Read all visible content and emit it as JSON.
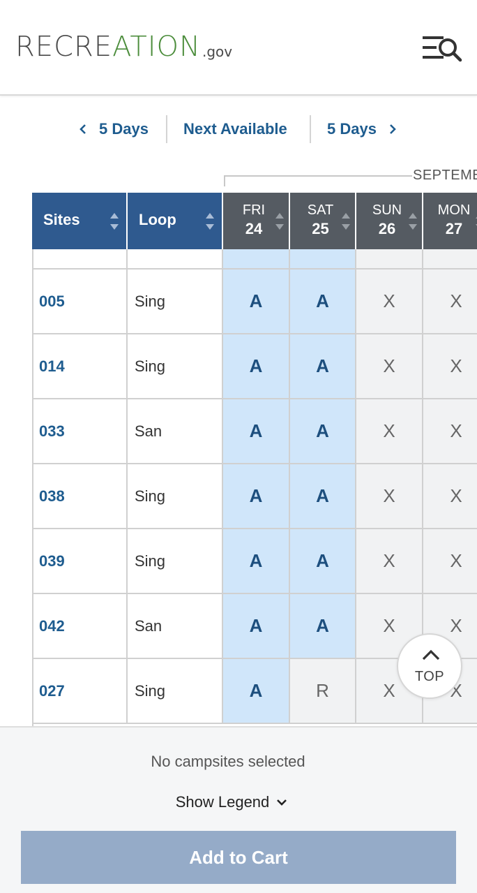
{
  "header": {
    "logo_part1": "RECRE",
    "logo_part2": "ATION",
    "logo_gov": ".gov",
    "menu_icon": "menu-search-icon"
  },
  "nav": {
    "prev_label": "5 Days",
    "next_available_label": "Next Available",
    "next_label": "5 Days"
  },
  "month": {
    "label": "SEPTEMB"
  },
  "table": {
    "columns": {
      "sites": "Sites",
      "loop": "Loop"
    },
    "days": [
      {
        "name": "FRI",
        "num": "24"
      },
      {
        "name": "SAT",
        "num": "25"
      },
      {
        "name": "SUN",
        "num": "26"
      },
      {
        "name": "MON",
        "num": "27"
      }
    ],
    "rows": [
      {
        "site": "005",
        "loop": "Sing",
        "avail": [
          "A",
          "A",
          "X",
          "X"
        ]
      },
      {
        "site": "014",
        "loop": "Sing",
        "avail": [
          "A",
          "A",
          "X",
          "X"
        ]
      },
      {
        "site": "033",
        "loop": "San",
        "avail": [
          "A",
          "A",
          "X",
          "X"
        ]
      },
      {
        "site": "038",
        "loop": "Sing",
        "avail": [
          "A",
          "A",
          "X",
          "X"
        ]
      },
      {
        "site": "039",
        "loop": "Sing",
        "avail": [
          "A",
          "A",
          "X",
          "X"
        ]
      },
      {
        "site": "042",
        "loop": "San",
        "avail": [
          "A",
          "A",
          "X",
          "X"
        ]
      },
      {
        "site": "027",
        "loop": "Sing",
        "avail": [
          "A",
          "R",
          "X",
          "X"
        ]
      }
    ]
  },
  "top_button": {
    "label": "TOP"
  },
  "footer": {
    "status": "No campsites selected",
    "legend_label": "Show Legend",
    "cart_label": "Add to Cart"
  },
  "colors": {
    "primary_blue": "#2f5a8f",
    "link_blue": "#1e5c8f",
    "available_bg": "#d0e6fa",
    "logo_green": "#4c8d3c"
  }
}
